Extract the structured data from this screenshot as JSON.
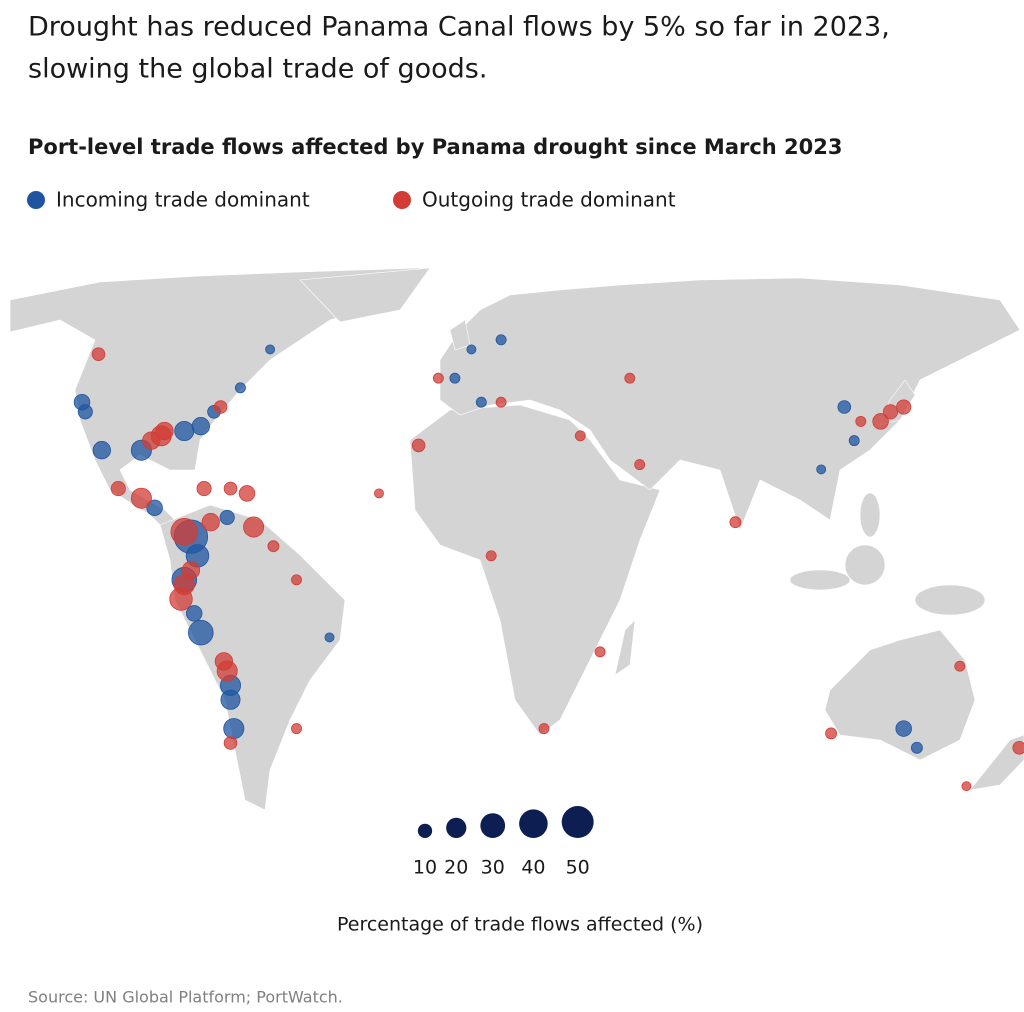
{
  "chart_data": {
    "type": "bubble-map",
    "title": "Drought has reduced Panama Canal flows by 5% so far in 2023,",
    "title_line2": "slowing the global trade of goods.",
    "subtitle": "Port-level trade flows affected by Panama drought since March 2023",
    "source": "Source: UN Global Platform; PortWatch.",
    "series": [
      {
        "name": "Incoming trade dominant",
        "color": "#1f55a0",
        "lon": [
          -77,
          -75,
          -79,
          -76,
          -74,
          -65,
          -65,
          -64,
          -110,
          -109,
          -104,
          -92,
          -79,
          -74,
          -88,
          -66,
          139,
          143,
          121,
          124,
          -70,
          -62,
          -53,
          3,
          11,
          17,
          8,
          -35,
          114
        ],
        "lat": [
          8,
          4,
          -1,
          -8,
          -12,
          -23,
          -26,
          -32,
          36,
          34,
          26,
          26,
          30,
          31,
          14,
          12,
          -32,
          -36,
          35,
          28,
          34,
          39,
          47,
          41,
          36,
          49,
          47,
          -13,
          22
        ],
        "values": [
          55,
          25,
          30,
          12,
          30,
          20,
          18,
          20,
          12,
          10,
          15,
          20,
          18,
          15,
          12,
          10,
          12,
          6,
          8,
          5,
          8,
          5,
          4,
          5,
          5,
          5,
          4,
          4,
          4
        ]
      },
      {
        "name": "Outgoing trade dominant",
        "color": "#d23c35",
        "lon": [
          -79,
          -80,
          -79,
          -77,
          -67,
          -66,
          -65,
          -92,
          -99,
          -71,
          -58,
          -60,
          -65,
          -73,
          -86,
          -89,
          -85,
          -105,
          -68,
          -8,
          -20,
          14,
          47,
          30,
          88,
          132,
          135,
          139,
          -52,
          -45,
          -45,
          59,
          41,
          126,
          174,
          158,
          156,
          117,
          -2,
          17,
          56
        ],
        "lat": [
          9,
          -5,
          -2,
          1,
          -18,
          -20,
          -35,
          16,
          18,
          11,
          10,
          17,
          18,
          18,
          29,
          28,
          30,
          46,
          35,
          27,
          17,
          4,
          -16,
          -32,
          11,
          32,
          34,
          35,
          6,
          -1,
          -32,
          23,
          29,
          32,
          -36,
          -44,
          -19,
          -33,
          41,
          36,
          41
        ],
        "values": [
          35,
          25,
          20,
          15,
          15,
          20,
          8,
          20,
          10,
          15,
          20,
          12,
          8,
          10,
          20,
          15,
          15,
          8,
          8,
          8,
          4,
          5,
          5,
          5,
          6,
          12,
          10,
          10,
          6,
          5,
          5,
          5,
          5,
          5,
          8,
          4,
          5,
          6,
          5,
          5,
          5
        ]
      }
    ],
    "size_legend": {
      "values": [
        10,
        20,
        30,
        40,
        50
      ],
      "label": "Percentage of trade flows affected (%)",
      "color": "#0d1f52"
    }
  }
}
